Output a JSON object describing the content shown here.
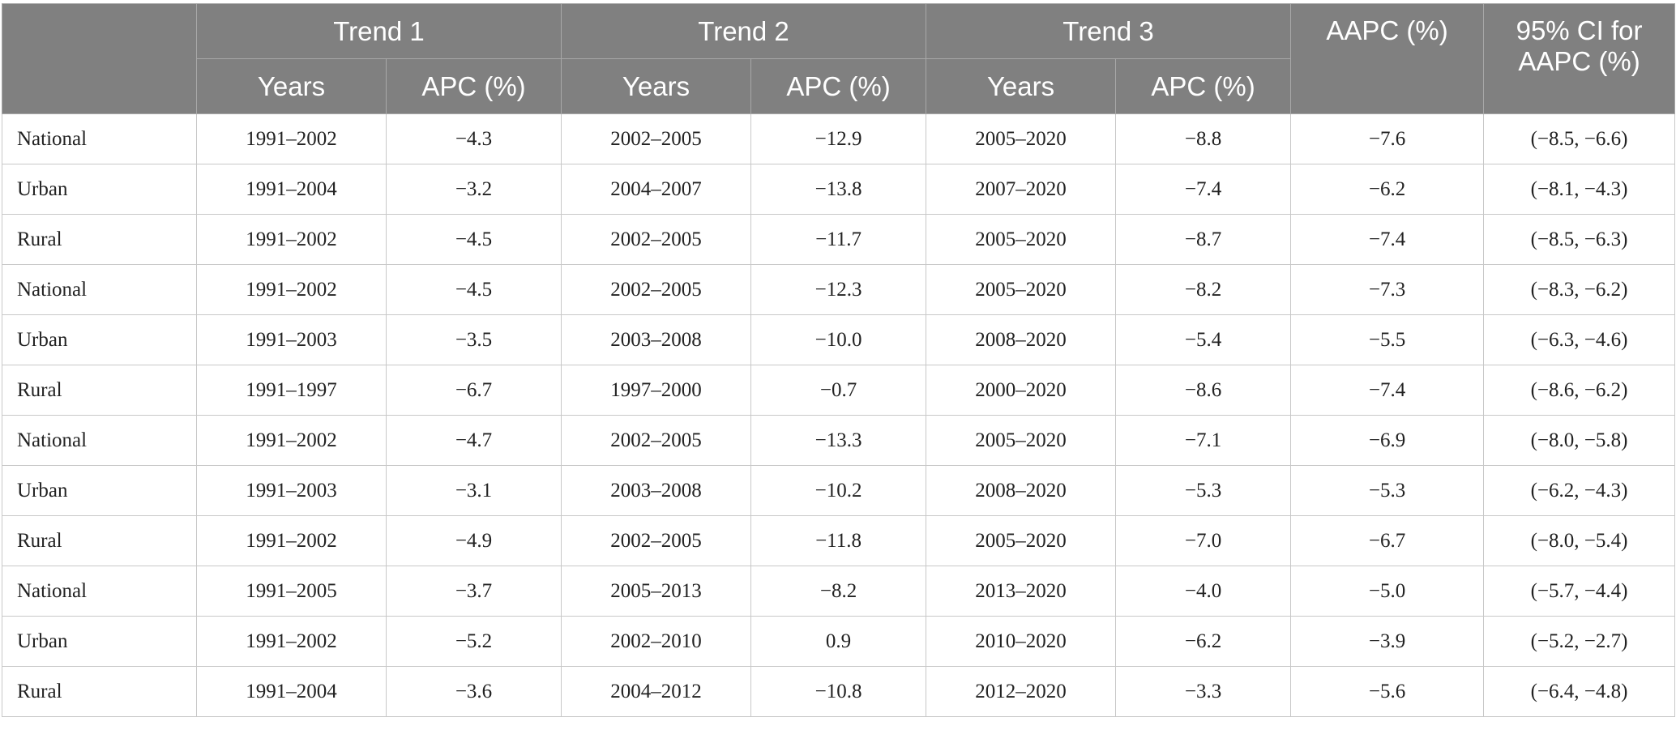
{
  "header": {
    "trends": [
      "Trend 1",
      "Trend 2",
      "Trend 3"
    ],
    "years_label": "Years",
    "apc_label": "APC (%)",
    "aapc_label": "AAPC (%)",
    "ci_label_line1": "95% CI for",
    "ci_label_line2": "AAPC (%)"
  },
  "rows": [
    [
      "National",
      "1991–2002",
      "−4.3",
      "2002–2005",
      "−12.9",
      "2005–2020",
      "−8.8",
      "−7.6",
      "(−8.5, −6.6)"
    ],
    [
      "Urban",
      "1991–2004",
      "−3.2",
      "2004–2007",
      "−13.8",
      "2007–2020",
      "−7.4",
      "−6.2",
      "(−8.1, −4.3)"
    ],
    [
      "Rural",
      "1991–2002",
      "−4.5",
      "2002–2005",
      "−11.7",
      "2005–2020",
      "−8.7",
      "−7.4",
      "(−8.5, −6.3)"
    ],
    [
      "National",
      "1991–2002",
      "−4.5",
      "2002–2005",
      "−12.3",
      "2005–2020",
      "−8.2",
      "−7.3",
      "(−8.3, −6.2)"
    ],
    [
      "Urban",
      "1991–2003",
      "−3.5",
      "2003–2008",
      "−10.0",
      "2008–2020",
      "−5.4",
      "−5.5",
      "(−6.3, −4.6)"
    ],
    [
      "Rural",
      "1991–1997",
      "−6.7",
      "1997–2000",
      "−0.7",
      "2000–2020",
      "−8.6",
      "−7.4",
      "(−8.6, −6.2)"
    ],
    [
      "National",
      "1991–2002",
      "−4.7",
      "2002–2005",
      "−13.3",
      "2005–2020",
      "−7.1",
      "−6.9",
      "(−8.0, −5.8)"
    ],
    [
      "Urban",
      "1991–2003",
      "−3.1",
      "2003–2008",
      "−10.2",
      "2008–2020",
      "−5.3",
      "−5.3",
      "(−6.2, −4.3)"
    ],
    [
      "Rural",
      "1991–2002",
      "−4.9",
      "2002–2005",
      "−11.8",
      "2005–2020",
      "−7.0",
      "−6.7",
      "(−8.0, −5.4)"
    ],
    [
      "National",
      "1991–2005",
      "−3.7",
      "2005–2013",
      "−8.2",
      "2013–2020",
      "−4.0",
      "−5.0",
      "(−5.7, −4.4)"
    ],
    [
      "Urban",
      "1991–2002",
      "−5.2",
      "2002–2010",
      "0.9",
      "2010–2020",
      "−6.2",
      "−3.9",
      "(−5.2, −2.7)"
    ],
    [
      "Rural",
      "1991–2004",
      "−3.6",
      "2004–2012",
      "−10.8",
      "2012–2020",
      "−3.3",
      "−5.6",
      "(−6.4, −4.8)"
    ]
  ]
}
